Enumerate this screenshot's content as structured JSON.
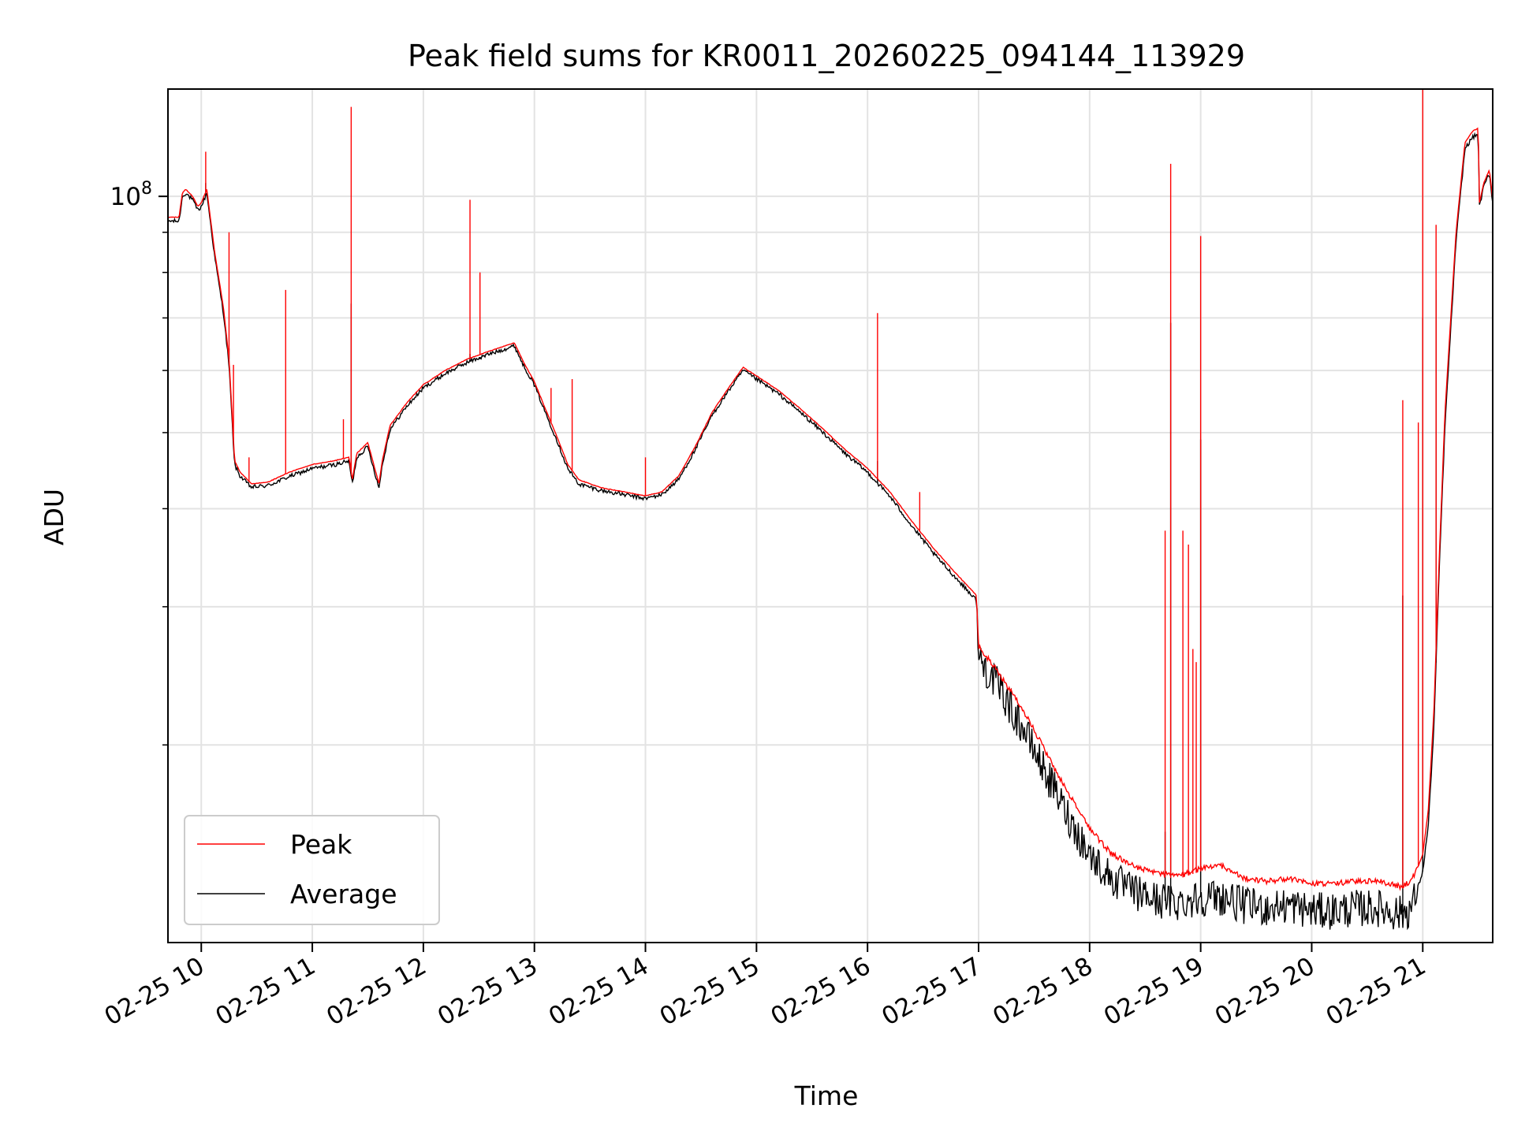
{
  "chart_data": {
    "type": "line",
    "title": "Peak field sums for KR0011_20260225_094144_113929",
    "xlabel": "Time",
    "ylabel": "ADU",
    "x_unit": "hour",
    "xlim": [
      9.7,
      21.63
    ],
    "ylim": [
      11200000,
      137000000
    ],
    "yscale": "log",
    "grid": true,
    "legend": "lower-left",
    "x_ticks": [
      {
        "x": 10,
        "label": "02-25 10"
      },
      {
        "x": 11,
        "label": "02-25 11"
      },
      {
        "x": 12,
        "label": "02-25 12"
      },
      {
        "x": 13,
        "label": "02-25 13"
      },
      {
        "x": 14,
        "label": "02-25 14"
      },
      {
        "x": 15,
        "label": "02-25 15"
      },
      {
        "x": 16,
        "label": "02-25 16"
      },
      {
        "x": 17,
        "label": "02-25 17"
      },
      {
        "x": 18,
        "label": "02-25 18"
      },
      {
        "x": 19,
        "label": "02-25 19"
      },
      {
        "x": 20,
        "label": "02-25 20"
      },
      {
        "x": 21,
        "label": "02-25 21"
      }
    ],
    "y_major_ticks": [
      {
        "y": 100000000,
        "base": "10",
        "exp": "8"
      }
    ],
    "y_minor_ticks": [
      20000000,
      30000000,
      40000000,
      50000000,
      60000000,
      70000000,
      80000000,
      90000000
    ],
    "series": [
      {
        "name": "Peak",
        "color": "#ff0000",
        "x": [
          9.7,
          9.8,
          9.83,
          9.86,
          9.92,
          9.97,
          10.0,
          10.05,
          10.12,
          10.2,
          10.25,
          10.28,
          10.3,
          10.35,
          10.45,
          10.6,
          10.8,
          11.0,
          11.2,
          11.33,
          11.36,
          11.4,
          11.5,
          11.6,
          11.63,
          11.7,
          11.85,
          12.0,
          12.2,
          12.4,
          12.6,
          12.82,
          12.9,
          13.0,
          13.1,
          13.2,
          13.3,
          13.4,
          13.6,
          13.8,
          14.0,
          14.15,
          14.3,
          14.45,
          14.6,
          14.75,
          14.88,
          15.0,
          15.2,
          15.4,
          15.6,
          15.8,
          16.0,
          16.2,
          16.4,
          16.6,
          16.8,
          16.98,
          17.0,
          17.2,
          17.4,
          17.6,
          17.8,
          18.0,
          18.2,
          18.4,
          18.6,
          18.8,
          19.0,
          19.2,
          19.4,
          19.6,
          19.8,
          20.0,
          20.2,
          20.4,
          20.6,
          20.8,
          20.9,
          21.0,
          21.05,
          21.1,
          21.15,
          21.2,
          21.3,
          21.38,
          21.45,
          21.5,
          21.51,
          21.55,
          21.6,
          21.63
        ],
        "y": [
          94000000,
          94000000,
          101000000,
          102000000,
          100000000,
          97000000,
          98000000,
          102000000,
          85000000,
          72000000,
          62000000,
          52000000,
          46000000,
          44500000,
          43000000,
          43200000,
          44500000,
          45500000,
          46000000,
          46500000,
          43500000,
          47000000,
          48500000,
          43000000,
          46000000,
          51000000,
          54500000,
          57500000,
          60000000,
          62000000,
          63500000,
          65000000,
          61500000,
          58000000,
          53500000,
          49500000,
          45500000,
          43500000,
          42500000,
          42000000,
          41500000,
          42000000,
          44000000,
          48000000,
          53000000,
          57000000,
          60500000,
          59000000,
          56500000,
          53500000,
          50500000,
          47500000,
          45000000,
          42000000,
          38500000,
          35500000,
          33000000,
          31000000,
          26500000,
          24300000,
          22000000,
          19500000,
          17300000,
          15500000,
          14400000,
          13900000,
          13600000,
          13500000,
          13800000,
          13900000,
          13400000,
          13300000,
          13400000,
          13200000,
          13200000,
          13300000,
          13300000,
          13100000,
          13300000,
          14500000,
          16500000,
          22000000,
          35000000,
          53000000,
          90000000,
          117000000,
          121000000,
          122000000,
          98000000,
          104000000,
          108000000,
          99000000
        ],
        "spikes": [
          {
            "x": 10.04,
            "y": 114000000
          },
          {
            "x": 10.25,
            "y": 90000000
          },
          {
            "x": 10.29,
            "y": 61000000
          },
          {
            "x": 10.43,
            "y": 46500000
          },
          {
            "x": 10.76,
            "y": 76000000
          },
          {
            "x": 11.28,
            "y": 52000000
          },
          {
            "x": 11.35,
            "y": 130000000
          },
          {
            "x": 12.42,
            "y": 99000000
          },
          {
            "x": 12.51,
            "y": 80000000
          },
          {
            "x": 13.15,
            "y": 57000000
          },
          {
            "x": 13.34,
            "y": 58500000
          },
          {
            "x": 14.0,
            "y": 46500000
          },
          {
            "x": 16.09,
            "y": 71000000
          },
          {
            "x": 16.47,
            "y": 42000000
          },
          {
            "x": 18.68,
            "y": 37500000
          },
          {
            "x": 18.73,
            "y": 110000000
          },
          {
            "x": 18.84,
            "y": 37500000
          },
          {
            "x": 18.89,
            "y": 36000000
          },
          {
            "x": 18.93,
            "y": 26500000
          },
          {
            "x": 18.96,
            "y": 25500000
          },
          {
            "x": 19.0,
            "y": 89000000
          },
          {
            "x": 20.82,
            "y": 55000000
          },
          {
            "x": 20.96,
            "y": 51500000
          },
          {
            "x": 21.0,
            "y": 137000000
          },
          {
            "x": 21.12,
            "y": 92000000
          }
        ]
      },
      {
        "name": "Average",
        "color": "#000000",
        "x": [
          9.7,
          9.8,
          9.83,
          9.86,
          9.92,
          9.97,
          10.0,
          10.05,
          10.12,
          10.2,
          10.25,
          10.28,
          10.3,
          10.35,
          10.45,
          10.6,
          10.8,
          11.0,
          11.2,
          11.33,
          11.36,
          11.4,
          11.5,
          11.6,
          11.63,
          11.7,
          11.85,
          12.0,
          12.2,
          12.4,
          12.6,
          12.82,
          12.9,
          13.0,
          13.1,
          13.2,
          13.3,
          13.4,
          13.6,
          13.8,
          14.0,
          14.15,
          14.3,
          14.45,
          14.6,
          14.75,
          14.88,
          15.0,
          15.2,
          15.4,
          15.6,
          15.8,
          16.0,
          16.2,
          16.4,
          16.6,
          16.8,
          16.98,
          17.0,
          17.2,
          17.4,
          17.6,
          17.8,
          18.0,
          18.2,
          18.4,
          18.6,
          18.8,
          19.0,
          19.2,
          19.4,
          19.6,
          19.8,
          20.0,
          20.2,
          20.4,
          20.6,
          20.8,
          20.9,
          21.0,
          21.05,
          21.1,
          21.15,
          21.2,
          21.3,
          21.38,
          21.45,
          21.5,
          21.51,
          21.55,
          21.6,
          21.63
        ],
        "y": [
          93000000,
          93000000,
          100000000,
          101000000,
          99000000,
          96000000,
          97000000,
          101000000,
          84000000,
          71000000,
          61000000,
          51000000,
          45500000,
          44000000,
          42600000,
          42800000,
          44000000,
          45000000,
          45500000,
          46000000,
          43000000,
          46500000,
          48000000,
          42500000,
          45500000,
          50500000,
          54000000,
          57000000,
          59500000,
          61500000,
          63000000,
          64500000,
          61000000,
          57500000,
          53000000,
          49000000,
          45000000,
          43000000,
          42200000,
          41700000,
          41200000,
          41700000,
          43600000,
          47600000,
          52600000,
          56600000,
          60000000,
          58500000,
          56000000,
          53000000,
          50000000,
          47000000,
          44500000,
          41500000,
          38000000,
          35000000,
          32600000,
          30600000,
          25800000,
          23500000,
          21000000,
          18500000,
          16300000,
          14500000,
          13500000,
          13000000,
          12700000,
          12600000,
          12800000,
          12800000,
          12500000,
          12400000,
          12500000,
          12300000,
          12300000,
          12400000,
          12400000,
          12200000,
          12400000,
          13800000,
          15800000,
          21000000,
          34000000,
          51000000,
          88000000,
          115000000,
          119000000,
          120000000,
          97000000,
          103000000,
          107000000,
          98000000
        ],
        "spikes": [
          {
            "x": 10.04,
            "y": 104000000
          },
          {
            "x": 10.25,
            "y": 64000000
          },
          {
            "x": 11.35,
            "y": 73000000
          },
          {
            "x": 12.42,
            "y": 63000000
          },
          {
            "x": 12.51,
            "y": 62000000
          },
          {
            "x": 16.09,
            "y": 46000000
          },
          {
            "x": 18.68,
            "y": 15500000
          },
          {
            "x": 18.73,
            "y": 69000000
          },
          {
            "x": 19.0,
            "y": 49000000
          },
          {
            "x": 20.82,
            "y": 31000000
          },
          {
            "x": 21.0,
            "y": 70000000
          },
          {
            "x": 21.12,
            "y": 76000000
          }
        ]
      }
    ]
  }
}
